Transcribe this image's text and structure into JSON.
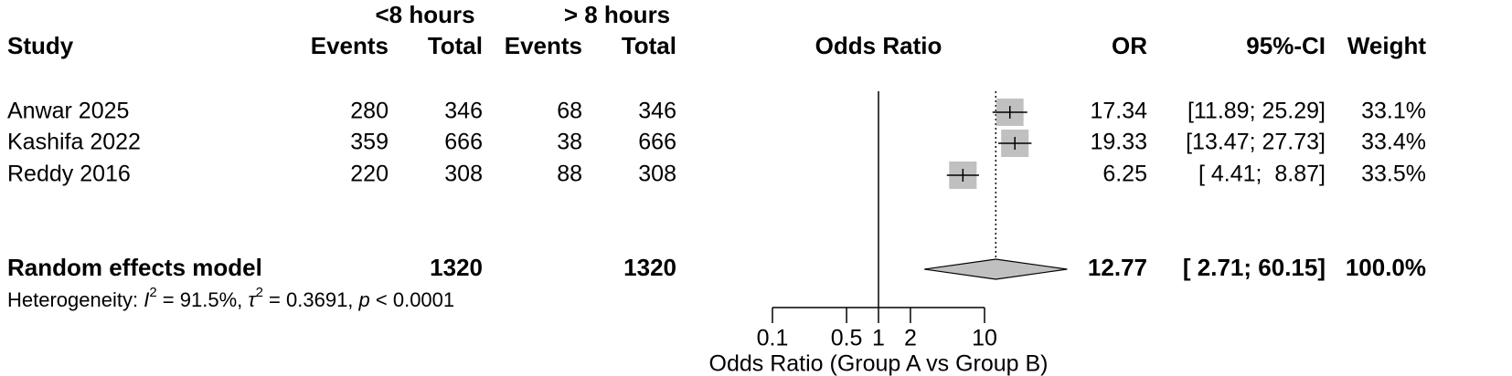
{
  "chart_data": {
    "type": "forest",
    "group_headers": [
      "<8 hours",
      "> 8 hours"
    ],
    "columns": [
      "Study",
      "Events",
      "Total",
      "Events",
      "Total",
      "Odds Ratio",
      "OR",
      "95%-CI",
      "Weight"
    ],
    "studies": {
      "names": [
        "Anwar 2025",
        "Kashifa 2022",
        "Reddy 2016"
      ],
      "events_a": [
        280,
        359,
        220
      ],
      "total_a": [
        346,
        666,
        308
      ],
      "events_b": [
        68,
        38,
        88
      ],
      "total_b": [
        346,
        666,
        308
      ],
      "or": [
        17.34,
        19.33,
        6.25
      ],
      "ci_lower": [
        11.89,
        13.47,
        4.41
      ],
      "ci_upper": [
        25.29,
        27.73,
        8.87
      ],
      "ci_labels": [
        "[11.89; 25.29]",
        "[13.47; 27.73]",
        "[ 4.41;  8.87]"
      ],
      "weights": [
        33.1,
        33.4,
        33.5
      ],
      "weight_labels": [
        "33.1%",
        "33.4%",
        "33.5%"
      ]
    },
    "pooled": {
      "label": "Random effects model",
      "total_a": 1320,
      "total_b": 1320,
      "or": 12.77,
      "ci_lower": 2.71,
      "ci_upper": 60.15,
      "ci_label": "[ 2.71; 60.15]",
      "weight": 100.0,
      "weight_label": "100.0%"
    },
    "heterogeneity": [
      "Heterogeneity: ",
      "I",
      "2",
      " = 91.5%, ",
      "τ",
      "2",
      " = 0.3691, ",
      "p",
      " < 0.0001"
    ],
    "xlabel": "Odds Ratio (Group A vs Group B)",
    "log_x": true,
    "xlim": [
      0.1,
      10
    ],
    "xticks": [
      0.1,
      0.5,
      1,
      2,
      10
    ],
    "reference_value": 1,
    "box_color": "#c0c0c0",
    "diamond_color": "#c0c0c0"
  }
}
